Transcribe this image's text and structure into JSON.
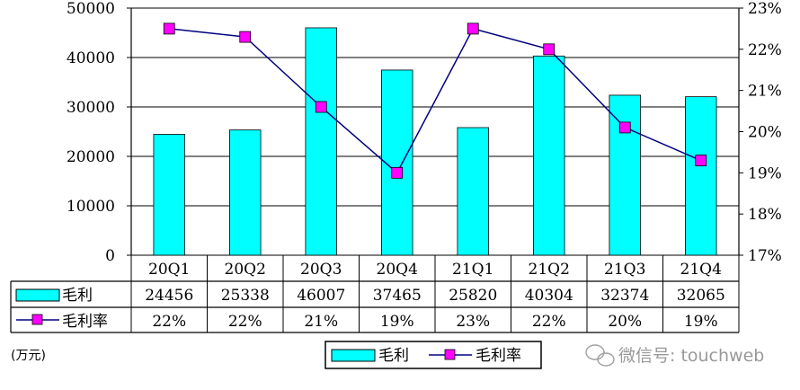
{
  "chart_data": {
    "type": "bar",
    "categories": [
      "20Q1",
      "20Q2",
      "20Q3",
      "20Q4",
      "21Q1",
      "21Q2",
      "21Q3",
      "21Q4"
    ],
    "series": [
      {
        "name": "毛利",
        "type": "bar",
        "axis": "left",
        "color": "#00ffff",
        "values": [
          24456,
          25338,
          46007,
          37465,
          25820,
          40304,
          32374,
          32065
        ]
      },
      {
        "name": "毛利率",
        "type": "line",
        "axis": "right",
        "color": "#ff00ff",
        "line_color": "#000080",
        "values": [
          22.5,
          22.3,
          20.6,
          19.0,
          22.5,
          22.0,
          20.1,
          19.3
        ],
        "labels": [
          "22%",
          "22%",
          "21%",
          "19%",
          "23%",
          "22%",
          "20%",
          "19%"
        ]
      }
    ],
    "ylim": [
      0,
      50000
    ],
    "yticks": [
      "0",
      "10000",
      "20000",
      "30000",
      "40000",
      "50000"
    ],
    "y2lim": [
      17,
      23
    ],
    "y2ticks": [
      "17%",
      "18%",
      "19%",
      "20%",
      "21%",
      "22%",
      "23%"
    ],
    "unit": "(万元)",
    "grid": true,
    "legend_position": "bottom",
    "data_table": true
  },
  "watermark": "微信号: touchweb"
}
